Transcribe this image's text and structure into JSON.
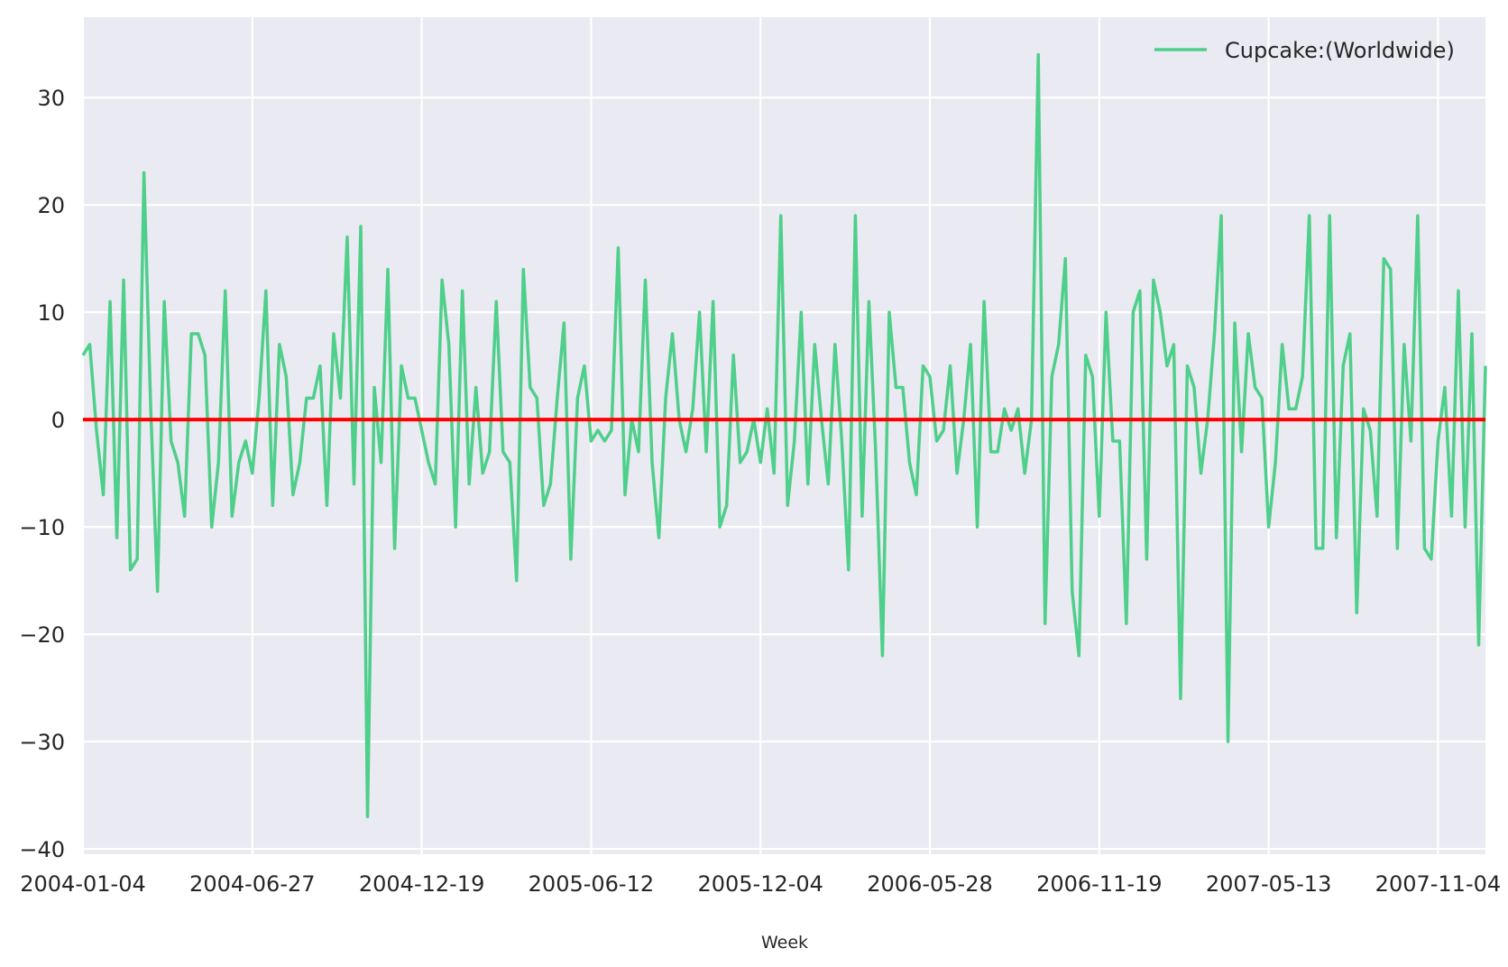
{
  "chart_data": {
    "type": "line",
    "title": "",
    "xlabel": "Week",
    "ylabel": "",
    "x_start": "2004-01-04",
    "x_step_days": 7,
    "xtick_labels": [
      "2004-01-04",
      "2004-06-27",
      "2004-12-19",
      "2005-06-12",
      "2005-12-04",
      "2006-05-28",
      "2006-11-19",
      "2007-05-13",
      "2007-11-04"
    ],
    "yticks": [
      -40,
      -30,
      -20,
      -10,
      0,
      10,
      20,
      30
    ],
    "ylim": [
      -40.5,
      37.5
    ],
    "grid": true,
    "legend_location": "top-right",
    "series": [
      {
        "name": "Cupcake:(Worldwide)",
        "color": "#4ecf8a",
        "values": [
          6,
          7,
          -1,
          -7,
          11,
          -11,
          13,
          -14,
          -13,
          23,
          1,
          -16,
          11,
          -2,
          -4,
          -9,
          8,
          8,
          6,
          -10,
          -4,
          12,
          -9,
          -4,
          -2,
          -5,
          2,
          12,
          -8,
          7,
          4,
          -7,
          -4,
          2,
          2,
          5,
          -8,
          8,
          2,
          17,
          -6,
          18,
          -37,
          3,
          -4,
          14,
          -12,
          5,
          2,
          2,
          -1,
          -4,
          -6,
          13,
          7,
          -10,
          12,
          -6,
          3,
          -5,
          -3,
          11,
          -3,
          -4,
          -15,
          14,
          3,
          2,
          -8,
          -6,
          2,
          9,
          -13,
          2,
          5,
          -2,
          -1,
          -2,
          -1,
          16,
          -7,
          0,
          -3,
          13,
          -4,
          -11,
          2,
          8,
          0,
          -3,
          1,
          10,
          -3,
          11,
          -10,
          -8,
          6,
          -4,
          -3,
          0,
          -4,
          1,
          -5,
          19,
          -8,
          -2,
          10,
          -6,
          7,
          0,
          -6,
          7,
          -2,
          -14,
          19,
          -9,
          11,
          -3,
          -22,
          10,
          3,
          3,
          -4,
          -7,
          5,
          4,
          -2,
          -1,
          5,
          -5,
          0,
          7,
          -10,
          11,
          -3,
          -3,
          1,
          -1,
          1,
          -5,
          0,
          34,
          -19,
          4,
          7,
          15,
          -16,
          -22,
          6,
          4,
          -9,
          10,
          -2,
          -2,
          -19,
          10,
          12,
          -13,
          13,
          10,
          5,
          7,
          -26,
          5,
          3,
          -5,
          0,
          8,
          19,
          -30,
          9,
          -3,
          8,
          3,
          2,
          -10,
          -4,
          7,
          1,
          1,
          4,
          19,
          -12,
          -12,
          19,
          -11,
          5,
          8,
          -18,
          1,
          -1,
          -9,
          15,
          14,
          -12,
          7,
          -2,
          19,
          -12,
          -13,
          -2,
          3,
          -9,
          12,
          -10,
          8,
          -21,
          5
        ]
      }
    ],
    "hline": {
      "y": 0,
      "color": "#ff0000"
    }
  },
  "colors": {
    "plot_background": "#eaeaf2",
    "grid": "#ffffff",
    "text": "#262626"
  }
}
